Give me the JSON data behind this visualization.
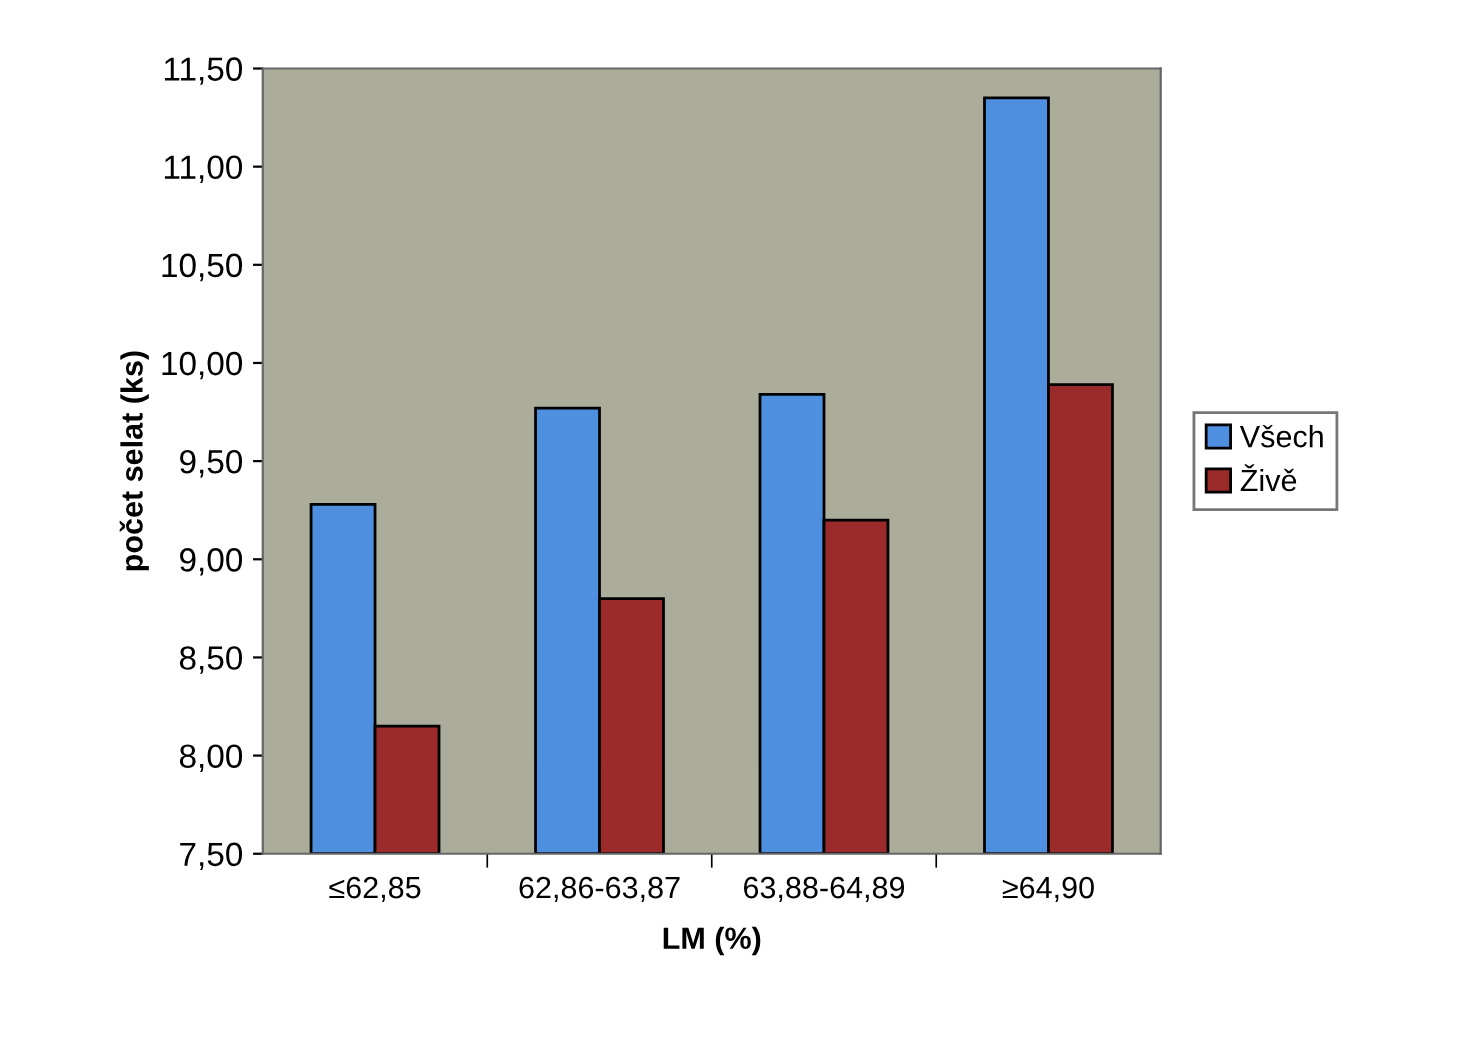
{
  "chart_data": {
    "type": "bar",
    "xlabel": "LM (%)",
    "ylabel": "počet selat (ks)",
    "categories": [
      "≤62,85",
      "62,86-63,87",
      "63,88-64,89",
      "≥64,90"
    ],
    "series": [
      {
        "name": "Všech",
        "color": "#4f8fe0",
        "values": [
          9.28,
          9.77,
          9.84,
          11.35
        ]
      },
      {
        "name": "Živě",
        "color": "#9b2a2a",
        "values": [
          8.15,
          8.8,
          9.2,
          9.89
        ]
      }
    ],
    "ylim": [
      7.5,
      11.5
    ],
    "yticks": [
      {
        "value": 7.5,
        "label": "7,50"
      },
      {
        "value": 8.0,
        "label": "8,00"
      },
      {
        "value": 8.5,
        "label": "8,50"
      },
      {
        "value": 9.0,
        "label": "9,00"
      },
      {
        "value": 9.5,
        "label": "9,50"
      },
      {
        "value": 10.0,
        "label": "10,00"
      },
      {
        "value": 10.5,
        "label": "10,50"
      },
      {
        "value": 11.0,
        "label": "11,00"
      },
      {
        "value": 11.5,
        "label": "11,50"
      }
    ],
    "legend": "right",
    "grid": false
  }
}
